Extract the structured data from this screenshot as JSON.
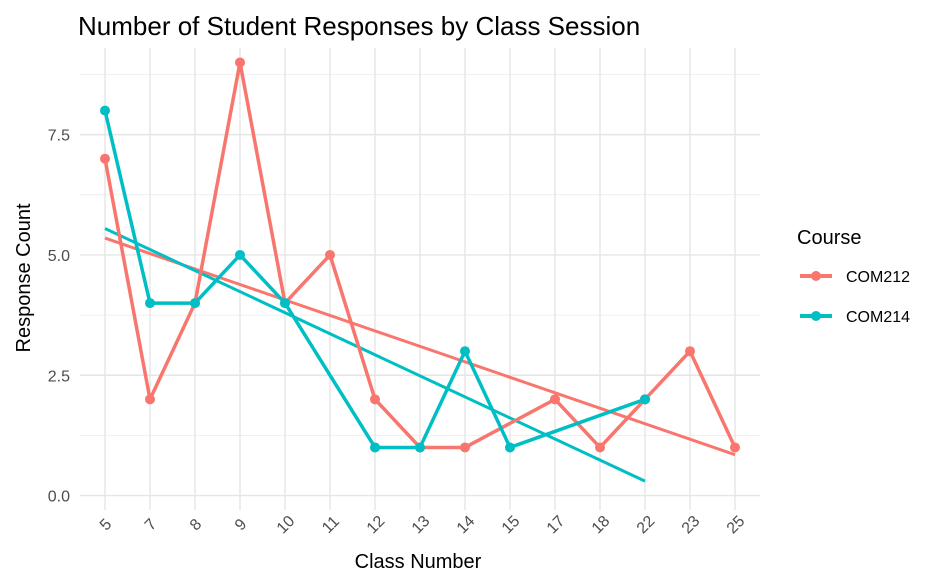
{
  "chart_data": {
    "type": "line",
    "title": "Number of Student Responses by Class Session",
    "xlabel": "Class Number",
    "ylabel": "Response Count",
    "categories": [
      "5",
      "7",
      "8",
      "9",
      "10",
      "11",
      "12",
      "13",
      "14",
      "15",
      "17",
      "18",
      "22",
      "23",
      "25"
    ],
    "y_ticks": [
      "0.0",
      "2.5",
      "5.0",
      "7.5"
    ],
    "ylim": [
      -0.3,
      9.3
    ],
    "grid": true,
    "legend": {
      "title": "Course",
      "position": "right"
    },
    "series": [
      {
        "name": "COM212",
        "color": "#F8766D",
        "x": [
          "5",
          "7",
          "8",
          "9",
          "10",
          "11",
          "12",
          "13",
          "14",
          "17",
          "18",
          "22",
          "23",
          "25"
        ],
        "values": [
          7,
          2,
          4,
          9,
          4,
          5,
          2,
          1,
          1,
          2,
          1,
          2,
          3,
          1
        ],
        "trend": {
          "start": 5.35,
          "end": 0.85
        }
      },
      {
        "name": "COM214",
        "color": "#00BFC4",
        "x": [
          "5",
          "7",
          "8",
          "9",
          "10",
          "12",
          "13",
          "14",
          "15",
          "22"
        ],
        "values": [
          8,
          4,
          4,
          5,
          4,
          1,
          1,
          3,
          1,
          2
        ],
        "trend": {
          "start": 5.55,
          "end": 0.3
        }
      }
    ]
  }
}
